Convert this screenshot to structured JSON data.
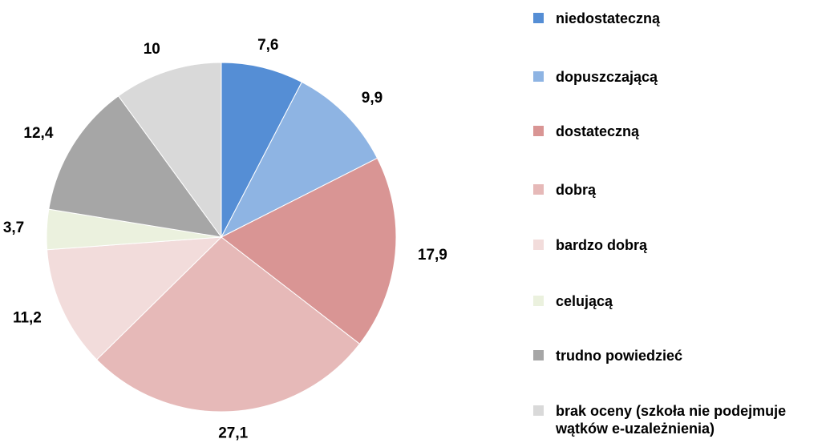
{
  "chart_data": {
    "type": "pie",
    "categories": [
      "niedostateczną",
      "dopuszczającą",
      "dostateczną",
      "dobrą",
      "bardzo dobrą",
      "celującą",
      "trudno powiedzieć",
      "brak oceny (szkoła nie podejmuje wątków e-uzależnienia)"
    ],
    "values": [
      7.6,
      9.9,
      17.9,
      27.1,
      11.2,
      3.7,
      12.4,
      10
    ],
    "value_labels": [
      "7,6",
      "9,9",
      "17,9",
      "27,1",
      "11,2",
      "3,7",
      "12,4",
      "10"
    ],
    "colors": [
      "#558ed5",
      "#8eb4e3",
      "#d99594",
      "#e6b9b8",
      "#f2dcdb",
      "#ebf1de",
      "#a6a6a6",
      "#d9d9d9"
    ],
    "legend": "right"
  }
}
